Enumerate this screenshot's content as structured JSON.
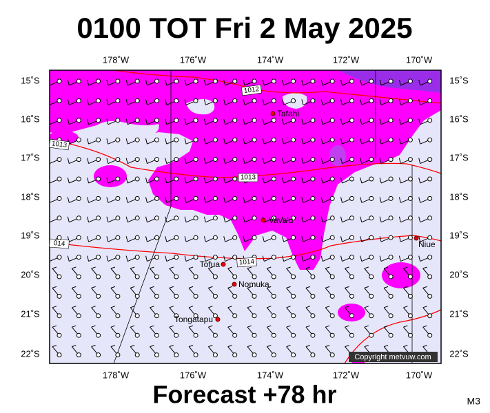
{
  "title": "0100 TOT Fri 2 May 2025",
  "footer": "Forecast +78 hr",
  "code": "M3",
  "copyright": "Copyright metvuw.com",
  "longitude_labels": [
    "178˚W",
    "176˚W",
    "174˚W",
    "172˚W",
    "170˚W"
  ],
  "latitude_labels": [
    "15˚S",
    "16˚S",
    "17˚S",
    "18˚S",
    "19˚S",
    "20˚S",
    "21˚S",
    "22˚S"
  ],
  "places": [
    "Tafahi",
    "Vava'u",
    "Niue",
    "Tofua",
    "Nomuka",
    "Tongatapu"
  ],
  "isobar_labels": [
    "1012",
    "1013",
    "1013",
    "014",
    "1014"
  ]
}
